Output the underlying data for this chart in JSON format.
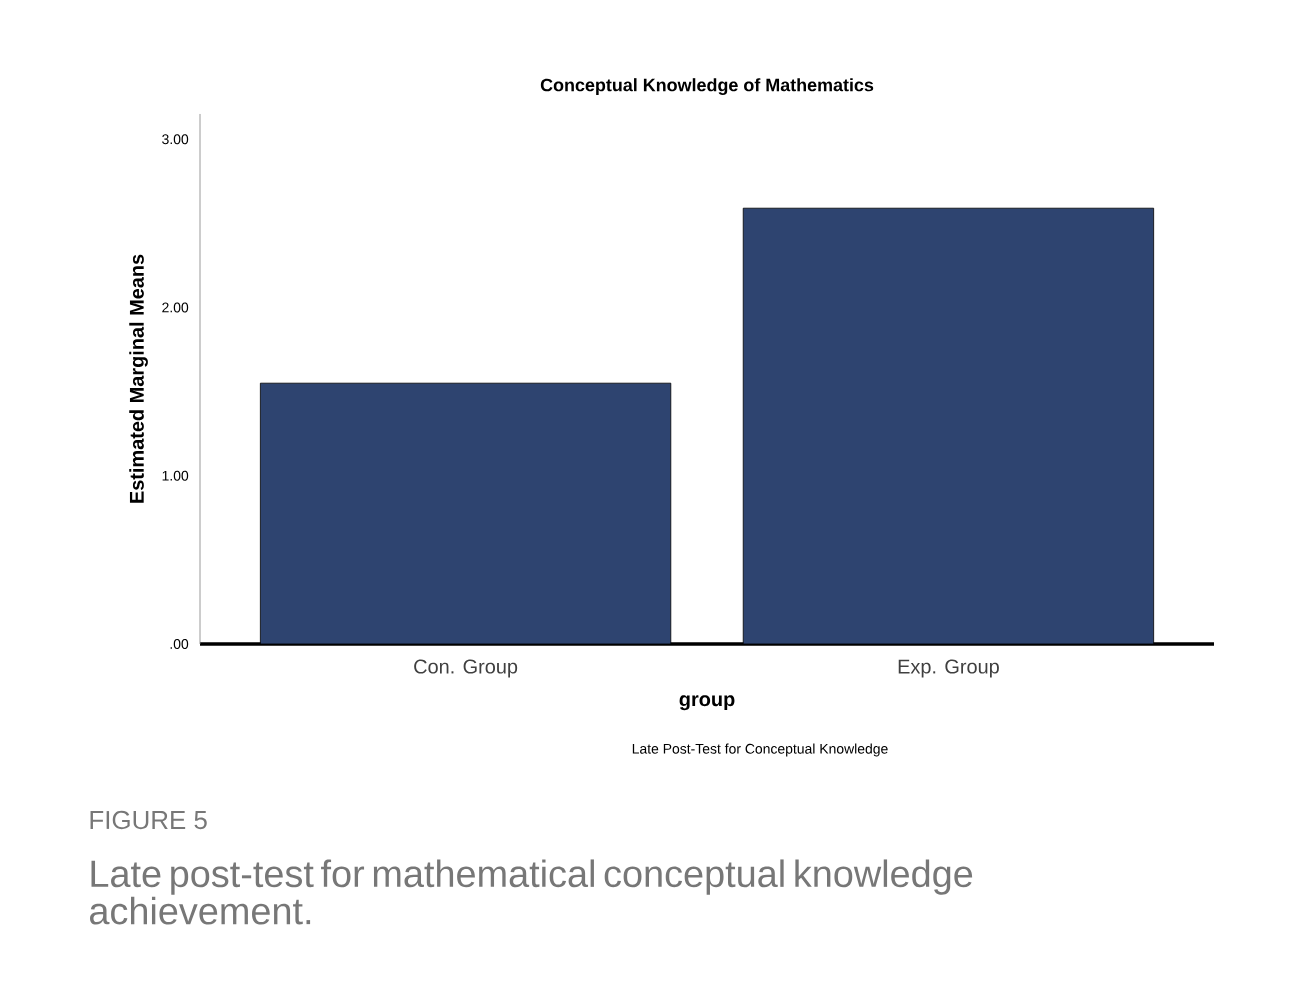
{
  "chart_data": {
    "type": "bar",
    "title": "Conceptual Knowledge of Mathematics",
    "xlabel": "group",
    "ylabel": "Estimated Marginal Means",
    "categories": [
      "Con. Group",
      "Exp. Group"
    ],
    "values": [
      1.55,
      2.59
    ],
    "color": "#2e4470",
    "ylim": [
      0,
      3.15
    ],
    "yticks": [
      {
        "value": 0,
        "label": ".00"
      },
      {
        "value": 1,
        "label": "1.00"
      },
      {
        "value": 2,
        "label": "2.00"
      },
      {
        "value": 3,
        "label": "3.00"
      }
    ],
    "grid": false,
    "annotations": [
      "Late Post-Test for Conceptual Knowledge",
      "FIGURE 5",
      "Late post-test for mathematical conceptual knowledge achievement."
    ]
  }
}
